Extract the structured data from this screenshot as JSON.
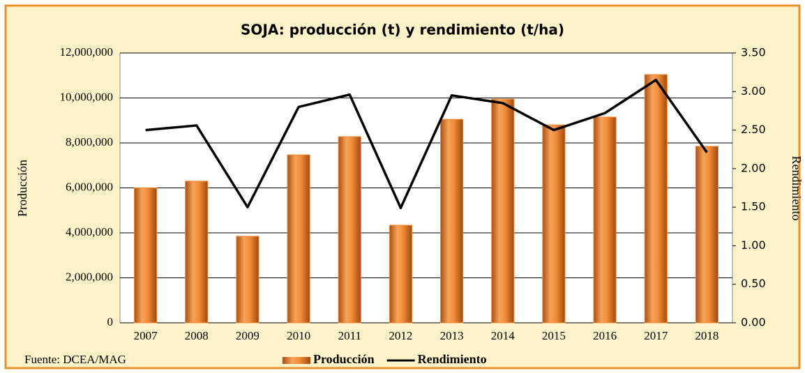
{
  "chart_data": {
    "type": "bar_line",
    "title": "SOJA: producción (t) y rendimiento (t/ha)",
    "ylabel": "Producción",
    "y2label": "Rendimiento",
    "source": "Fuente: DCEA/MAG",
    "categories": [
      "2007",
      "2008",
      "2009",
      "2010",
      "2011",
      "2012",
      "2013",
      "2014",
      "2015",
      "2016",
      "2017",
      "2018"
    ],
    "series": [
      {
        "name": "Producción",
        "type": "bar",
        "color": "#f28c38",
        "values": [
          6000000,
          6300000,
          3850000,
          7470000,
          8280000,
          4340000,
          9050000,
          9950000,
          8800000,
          9150000,
          11040000,
          7850000
        ]
      },
      {
        "name": "Rendimiento",
        "type": "line",
        "axis": "y2",
        "color": "#000000",
        "values": [
          2.5,
          2.56,
          1.5,
          2.8,
          2.96,
          1.49,
          2.95,
          2.85,
          2.5,
          2.72,
          3.15,
          2.21
        ]
      }
    ],
    "ylim": [
      0,
      12000000
    ],
    "yticks": [
      0,
      {
        "value": 2000000,
        "label": "2,000,000"
      },
      {
        "value": 4000000,
        "label": "4,000,000"
      },
      {
        "value": 6000000,
        "label": "6,000,000"
      },
      {
        "value": 8000000,
        "label": "8,000,000"
      },
      {
        "value": 10000000,
        "label": "10,000,000"
      },
      {
        "value": 12000000,
        "label": "12,000,000"
      }
    ],
    "y2lim": [
      0,
      3.5
    ],
    "y2ticks": [
      {
        "value": 0,
        "label": "0.00"
      },
      {
        "value": 0.5,
        "label": "0.50"
      },
      {
        "value": 1,
        "label": "1.00"
      },
      {
        "value": 1.5,
        "label": "1.50"
      },
      {
        "value": 2,
        "label": "2.00"
      },
      {
        "value": 2.5,
        "label": "2.50"
      },
      {
        "value": 3,
        "label": "3.00"
      },
      {
        "value": 3.5,
        "label": "3.50"
      }
    ],
    "grid": true,
    "legend": "bottom"
  }
}
